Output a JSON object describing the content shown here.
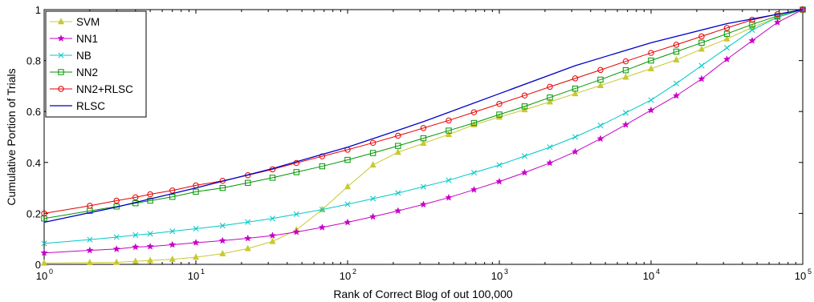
{
  "chart_data": {
    "type": "line",
    "xlabel": "Rank of Correct Blog of out 100,000",
    "ylabel": "Cumulative Portion of Trials",
    "xscale": "log",
    "xlim": [
      1,
      100000
    ],
    "ylim": [
      0,
      1
    ],
    "grid": false,
    "legend_position": "top-left",
    "x_ticks": [
      {
        "base": "10",
        "exp": "0",
        "value": 1
      },
      {
        "base": "10",
        "exp": "1",
        "value": 10
      },
      {
        "base": "10",
        "exp": "2",
        "value": 100
      },
      {
        "base": "10",
        "exp": "3",
        "value": 1000
      },
      {
        "base": "10",
        "exp": "4",
        "value": 10000
      },
      {
        "base": "10",
        "exp": "5",
        "value": 100000
      }
    ],
    "y_ticks": [
      {
        "label": "0",
        "value": 0
      },
      {
        "label": "0.2",
        "value": 0.2
      },
      {
        "label": "0.4",
        "value": 0.4
      },
      {
        "label": "0.6",
        "value": 0.6
      },
      {
        "label": "0.8",
        "value": 0.8
      },
      {
        "label": "1",
        "value": 1
      }
    ],
    "series": [
      {
        "name": "SVM",
        "color": "#c8c832",
        "marker": "triangle",
        "points": [
          [
            1,
            0.005
          ],
          [
            2,
            0.007
          ],
          [
            3,
            0.008
          ],
          [
            4,
            0.012
          ],
          [
            5,
            0.015
          ],
          [
            7,
            0.02
          ],
          [
            10,
            0.028
          ],
          [
            15,
            0.042
          ],
          [
            22,
            0.062
          ],
          [
            32,
            0.09
          ],
          [
            46,
            0.135
          ],
          [
            68,
            0.215
          ],
          [
            100,
            0.305
          ],
          [
            147,
            0.39
          ],
          [
            215,
            0.44
          ],
          [
            316,
            0.475
          ],
          [
            464,
            0.51
          ],
          [
            681,
            0.548
          ],
          [
            1000,
            0.578
          ],
          [
            1468,
            0.607
          ],
          [
            2154,
            0.638
          ],
          [
            3162,
            0.67
          ],
          [
            4642,
            0.702
          ],
          [
            6813,
            0.735
          ],
          [
            10000,
            0.768
          ],
          [
            14678,
            0.803
          ],
          [
            21544,
            0.845
          ],
          [
            31623,
            0.885
          ],
          [
            46416,
            0.93
          ],
          [
            68129,
            0.97
          ],
          [
            100000,
            1.0
          ]
        ]
      },
      {
        "name": "NN1",
        "color": "#c800c8",
        "marker": "star",
        "points": [
          [
            1,
            0.045
          ],
          [
            2,
            0.055
          ],
          [
            3,
            0.06
          ],
          [
            4,
            0.068
          ],
          [
            5,
            0.07
          ],
          [
            7,
            0.077
          ],
          [
            10,
            0.085
          ],
          [
            15,
            0.093
          ],
          [
            22,
            0.102
          ],
          [
            32,
            0.113
          ],
          [
            46,
            0.127
          ],
          [
            68,
            0.145
          ],
          [
            100,
            0.165
          ],
          [
            147,
            0.187
          ],
          [
            215,
            0.21
          ],
          [
            316,
            0.235
          ],
          [
            464,
            0.262
          ],
          [
            681,
            0.293
          ],
          [
            1000,
            0.325
          ],
          [
            1468,
            0.36
          ],
          [
            2154,
            0.398
          ],
          [
            3162,
            0.442
          ],
          [
            4642,
            0.493
          ],
          [
            6813,
            0.548
          ],
          [
            10000,
            0.605
          ],
          [
            14678,
            0.662
          ],
          [
            21544,
            0.728
          ],
          [
            31623,
            0.805
          ],
          [
            46416,
            0.878
          ],
          [
            68129,
            0.95
          ],
          [
            100000,
            1.0
          ]
        ]
      },
      {
        "name": "NB",
        "color": "#00c8c8",
        "marker": "x",
        "points": [
          [
            1,
            0.082
          ],
          [
            2,
            0.097
          ],
          [
            3,
            0.107
          ],
          [
            4,
            0.115
          ],
          [
            5,
            0.12
          ],
          [
            7,
            0.13
          ],
          [
            10,
            0.14
          ],
          [
            15,
            0.152
          ],
          [
            22,
            0.166
          ],
          [
            32,
            0.18
          ],
          [
            46,
            0.197
          ],
          [
            68,
            0.215
          ],
          [
            100,
            0.236
          ],
          [
            147,
            0.258
          ],
          [
            215,
            0.28
          ],
          [
            316,
            0.305
          ],
          [
            464,
            0.33
          ],
          [
            681,
            0.36
          ],
          [
            1000,
            0.39
          ],
          [
            1468,
            0.425
          ],
          [
            2154,
            0.46
          ],
          [
            3162,
            0.5
          ],
          [
            4642,
            0.545
          ],
          [
            6813,
            0.595
          ],
          [
            10000,
            0.645
          ],
          [
            14678,
            0.71
          ],
          [
            21544,
            0.78
          ],
          [
            31623,
            0.85
          ],
          [
            46416,
            0.92
          ],
          [
            68129,
            0.97
          ],
          [
            100000,
            1.0
          ]
        ]
      },
      {
        "name": "NN2",
        "color": "#009600",
        "marker": "square",
        "points": [
          [
            1,
            0.18
          ],
          [
            2,
            0.21
          ],
          [
            3,
            0.227
          ],
          [
            4,
            0.24
          ],
          [
            5,
            0.25
          ],
          [
            7,
            0.265
          ],
          [
            10,
            0.285
          ],
          [
            15,
            0.3
          ],
          [
            22,
            0.32
          ],
          [
            32,
            0.34
          ],
          [
            46,
            0.362
          ],
          [
            68,
            0.385
          ],
          [
            100,
            0.41
          ],
          [
            147,
            0.437
          ],
          [
            215,
            0.465
          ],
          [
            316,
            0.495
          ],
          [
            464,
            0.525
          ],
          [
            681,
            0.555
          ],
          [
            1000,
            0.588
          ],
          [
            1468,
            0.62
          ],
          [
            2154,
            0.655
          ],
          [
            3162,
            0.69
          ],
          [
            4642,
            0.725
          ],
          [
            6813,
            0.762
          ],
          [
            10000,
            0.8
          ],
          [
            14678,
            0.835
          ],
          [
            21544,
            0.87
          ],
          [
            31623,
            0.905
          ],
          [
            46416,
            0.942
          ],
          [
            68129,
            0.975
          ],
          [
            100000,
            1.0
          ]
        ]
      },
      {
        "name": "NN2+RLSC",
        "color": "#e60000",
        "marker": "circle",
        "points": [
          [
            1,
            0.2
          ],
          [
            2,
            0.23
          ],
          [
            3,
            0.25
          ],
          [
            4,
            0.263
          ],
          [
            5,
            0.275
          ],
          [
            7,
            0.29
          ],
          [
            10,
            0.31
          ],
          [
            15,
            0.328
          ],
          [
            22,
            0.35
          ],
          [
            32,
            0.373
          ],
          [
            46,
            0.398
          ],
          [
            68,
            0.424
          ],
          [
            100,
            0.45
          ],
          [
            147,
            0.477
          ],
          [
            215,
            0.505
          ],
          [
            316,
            0.535
          ],
          [
            464,
            0.565
          ],
          [
            681,
            0.597
          ],
          [
            1000,
            0.63
          ],
          [
            1468,
            0.663
          ],
          [
            2154,
            0.697
          ],
          [
            3162,
            0.73
          ],
          [
            4642,
            0.763
          ],
          [
            6813,
            0.797
          ],
          [
            10000,
            0.83
          ],
          [
            14678,
            0.862
          ],
          [
            21544,
            0.895
          ],
          [
            31623,
            0.928
          ],
          [
            46416,
            0.96
          ],
          [
            68129,
            0.982
          ],
          [
            100000,
            1.0
          ]
        ]
      },
      {
        "name": "RLSC",
        "color": "#0000c8",
        "marker": "none",
        "points": [
          [
            1,
            0.165
          ],
          [
            3,
            0.225
          ],
          [
            10,
            0.3
          ],
          [
            31.6,
            0.375
          ],
          [
            100,
            0.46
          ],
          [
            316,
            0.56
          ],
          [
            1000,
            0.67
          ],
          [
            3162,
            0.78
          ],
          [
            10000,
            0.87
          ],
          [
            31623,
            0.945
          ],
          [
            100000,
            1.0
          ]
        ]
      }
    ]
  }
}
